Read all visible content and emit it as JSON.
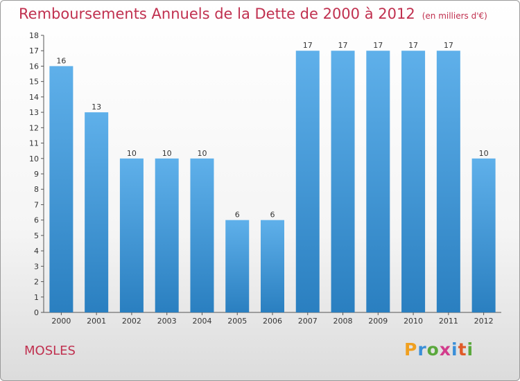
{
  "header": {
    "title": "Remboursements Annuels de la Dette de 2000 à 2012",
    "unit": "(en milliers d'€)"
  },
  "footer": {
    "commune": "MOSLES",
    "brand": [
      "P",
      "r",
      "o",
      "x",
      "i",
      "t",
      "i"
    ]
  },
  "colors": {
    "title": "#c0304f",
    "bar_top": "#5fb0ea",
    "bar_bottom": "#2a7fc0"
  },
  "chart_data": {
    "type": "bar",
    "title": "Remboursements Annuels de la Dette de 2000 à 2012",
    "subtitle": "(en milliers d'€)",
    "xlabel": "",
    "ylabel": "",
    "categories": [
      "2000",
      "2001",
      "2002",
      "2003",
      "2004",
      "2005",
      "2006",
      "2007",
      "2008",
      "2009",
      "2010",
      "2011",
      "2012"
    ],
    "values": [
      16,
      13,
      10,
      10,
      10,
      6,
      6,
      17,
      17,
      17,
      17,
      17,
      10
    ],
    "ylim": [
      0,
      18
    ],
    "yticks": [
      0,
      1,
      2,
      3,
      4,
      5,
      6,
      7,
      8,
      9,
      10,
      11,
      12,
      13,
      14,
      15,
      16,
      17,
      18
    ],
    "grid": false,
    "legend": "none"
  }
}
